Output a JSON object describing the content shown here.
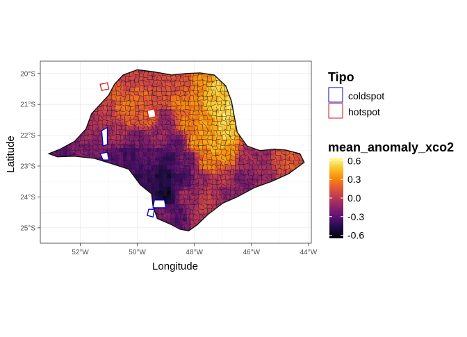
{
  "chart_data": {
    "type": "choropleth-map",
    "xlabel": "Longitude",
    "ylabel": "Latitude",
    "x_ticks": [
      {
        "value": -52,
        "label": "52°W"
      },
      {
        "value": -50,
        "label": "50°W"
      },
      {
        "value": -48,
        "label": "48°W"
      },
      {
        "value": -46,
        "label": "46°W"
      },
      {
        "value": -44,
        "label": "44°W"
      }
    ],
    "y_ticks": [
      {
        "value": -20,
        "label": "20°S"
      },
      {
        "value": -21,
        "label": "21°S"
      },
      {
        "value": -22,
        "label": "22°S"
      },
      {
        "value": -23,
        "label": "23°S"
      },
      {
        "value": -24,
        "label": "24°S"
      },
      {
        "value": -25,
        "label": "25°S"
      }
    ],
    "xlim": [
      -53.4,
      -43.9
    ],
    "ylim": [
      -25.5,
      -19.6
    ],
    "grid": true,
    "legend_position": "right",
    "tipo_legend": {
      "title": "Tipo",
      "entries": [
        {
          "label": "coldspot",
          "color": "#0000cc"
        },
        {
          "label": "hotspot",
          "color": "#dd1111"
        }
      ]
    },
    "color_legend": {
      "title": "mean_anomaly_xco2",
      "colormap": "inferno",
      "range": [
        -0.65,
        0.65
      ],
      "ticks": [
        {
          "value": 0.6,
          "label": "0.6"
        },
        {
          "value": 0.3,
          "label": "0.3"
        },
        {
          "value": 0.0,
          "label": "0.0"
        },
        {
          "value": -0.3,
          "label": "-0.3"
        },
        {
          "value": -0.6,
          "label": "-0.6"
        }
      ]
    },
    "region_outline": [
      [
        -53.1,
        -22.6
      ],
      [
        -52.7,
        -22.45
      ],
      [
        -52.2,
        -22.2
      ],
      [
        -51.8,
        -21.8
      ],
      [
        -51.6,
        -21.3
      ],
      [
        -51.3,
        -21.0
      ],
      [
        -51.0,
        -20.7
      ],
      [
        -50.8,
        -20.35
      ],
      [
        -50.5,
        -20.05
      ],
      [
        -50.0,
        -19.88
      ],
      [
        -49.4,
        -19.95
      ],
      [
        -48.8,
        -20.05
      ],
      [
        -48.3,
        -20.0
      ],
      [
        -47.8,
        -19.98
      ],
      [
        -47.3,
        -20.05
      ],
      [
        -46.9,
        -20.4
      ],
      [
        -46.7,
        -20.9
      ],
      [
        -46.6,
        -21.4
      ],
      [
        -46.5,
        -21.9
      ],
      [
        -46.15,
        -22.35
      ],
      [
        -45.7,
        -22.5
      ],
      [
        -45.2,
        -22.45
      ],
      [
        -44.8,
        -22.48
      ],
      [
        -44.3,
        -22.6
      ],
      [
        -44.15,
        -22.88
      ],
      [
        -44.7,
        -23.25
      ],
      [
        -45.3,
        -23.5
      ],
      [
        -45.9,
        -23.7
      ],
      [
        -46.5,
        -24.0
      ],
      [
        -47.0,
        -24.2
      ],
      [
        -47.5,
        -24.55
      ],
      [
        -47.9,
        -24.9
      ],
      [
        -48.2,
        -25.1
      ],
      [
        -48.5,
        -25.05
      ],
      [
        -48.8,
        -24.9
      ],
      [
        -49.3,
        -24.7
      ],
      [
        -49.45,
        -24.3
      ],
      [
        -49.5,
        -23.9
      ],
      [
        -49.9,
        -23.6
      ],
      [
        -50.3,
        -23.1
      ],
      [
        -50.8,
        -22.95
      ],
      [
        -51.5,
        -22.75
      ],
      [
        -52.2,
        -22.68
      ],
      [
        -52.8,
        -22.7
      ],
      [
        -53.1,
        -22.6
      ]
    ],
    "anomaly_cells": [
      {
        "lon": -52.7,
        "lat": -22.6,
        "v": -0.3
      },
      {
        "lon": -52.2,
        "lat": -22.4,
        "v": -0.2
      },
      {
        "lon": -51.8,
        "lat": -22.0,
        "v": -0.1
      },
      {
        "lon": -51.4,
        "lat": -21.6,
        "v": -0.05
      },
      {
        "lon": -51.0,
        "lat": -21.1,
        "v": 0.05
      },
      {
        "lon": -50.8,
        "lat": -20.5,
        "v": 0.15
      },
      {
        "lon": -50.3,
        "lat": -20.2,
        "v": 0.1
      },
      {
        "lon": -49.7,
        "lat": -20.1,
        "v": 0.05
      },
      {
        "lon": -49.1,
        "lat": -20.2,
        "v": 0.1
      },
      {
        "lon": -48.4,
        "lat": -20.3,
        "v": 0.15
      },
      {
        "lon": -47.7,
        "lat": -20.2,
        "v": 0.35
      },
      {
        "lon": -47.1,
        "lat": -20.5,
        "v": 0.5
      },
      {
        "lon": -46.9,
        "lat": -21.2,
        "v": 0.55
      },
      {
        "lon": -47.3,
        "lat": -21.0,
        "v": 0.45
      },
      {
        "lon": -47.9,
        "lat": -21.2,
        "v": 0.3
      },
      {
        "lon": -48.5,
        "lat": -21.0,
        "v": 0.25
      },
      {
        "lon": -49.2,
        "lat": -20.8,
        "v": 0.1
      },
      {
        "lon": -49.9,
        "lat": -20.7,
        "v": 0.2
      },
      {
        "lon": -50.5,
        "lat": -21.0,
        "v": 0.25
      },
      {
        "lon": -50.2,
        "lat": -21.5,
        "v": 0.15
      },
      {
        "lon": -49.6,
        "lat": -21.4,
        "v": 0.2
      },
      {
        "lon": -49.0,
        "lat": -21.5,
        "v": -0.15
      },
      {
        "lon": -48.3,
        "lat": -21.6,
        "v": 0.3
      },
      {
        "lon": -47.6,
        "lat": -21.7,
        "v": 0.35
      },
      {
        "lon": -46.9,
        "lat": -21.9,
        "v": 0.5
      },
      {
        "lon": -47.2,
        "lat": -22.3,
        "v": 0.4
      },
      {
        "lon": -47.9,
        "lat": -22.2,
        "v": 0.35
      },
      {
        "lon": -48.6,
        "lat": -22.2,
        "v": -0.25
      },
      {
        "lon": -49.3,
        "lat": -22.0,
        "v": -0.1
      },
      {
        "lon": -50.0,
        "lat": -22.1,
        "v": -0.2
      },
      {
        "lon": -50.7,
        "lat": -22.0,
        "v": -0.05
      },
      {
        "lon": -51.2,
        "lat": -22.3,
        "v": -0.15
      },
      {
        "lon": -51.6,
        "lat": -22.6,
        "v": -0.2
      },
      {
        "lon": -50.9,
        "lat": -22.7,
        "v": -0.3
      },
      {
        "lon": -50.3,
        "lat": -22.6,
        "v": -0.35
      },
      {
        "lon": -49.6,
        "lat": -22.6,
        "v": -0.3
      },
      {
        "lon": -48.9,
        "lat": -22.8,
        "v": -0.4
      },
      {
        "lon": -48.2,
        "lat": -22.8,
        "v": -0.2
      },
      {
        "lon": -47.5,
        "lat": -22.9,
        "v": 0.3
      },
      {
        "lon": -46.8,
        "lat": -22.6,
        "v": 0.35
      },
      {
        "lon": -46.2,
        "lat": -22.7,
        "v": -0.05
      },
      {
        "lon": -45.6,
        "lat": -22.8,
        "v": -0.1
      },
      {
        "lon": -45.0,
        "lat": -22.8,
        "v": 0.1
      },
      {
        "lon": -44.5,
        "lat": -22.8,
        "v": 0.15
      },
      {
        "lon": -45.6,
        "lat": -23.3,
        "v": -0.1
      },
      {
        "lon": -46.3,
        "lat": -23.4,
        "v": -0.2
      },
      {
        "lon": -47.0,
        "lat": -23.5,
        "v": 0.0
      },
      {
        "lon": -47.7,
        "lat": -23.4,
        "v": -0.1
      },
      {
        "lon": -48.4,
        "lat": -23.4,
        "v": -0.35
      },
      {
        "lon": -49.1,
        "lat": -23.4,
        "v": -0.5
      },
      {
        "lon": -49.7,
        "lat": -23.3,
        "v": -0.4
      },
      {
        "lon": -49.0,
        "lat": -24.0,
        "v": -0.55
      },
      {
        "lon": -48.3,
        "lat": -24.0,
        "v": -0.1
      },
      {
        "lon": -47.5,
        "lat": -24.1,
        "v": 0.05
      },
      {
        "lon": -46.9,
        "lat": -23.9,
        "v": -0.15
      },
      {
        "lon": -48.5,
        "lat": -24.6,
        "v": -0.3
      },
      {
        "lon": -49.1,
        "lat": -24.5,
        "v": -0.2
      },
      {
        "lon": -47.9,
        "lat": -24.6,
        "v": 0.0
      }
    ],
    "coldspots": [
      [
        [
          -51.25,
          -21.85
        ],
        [
          -51.05,
          -21.75
        ],
        [
          -51.05,
          -22.3
        ],
        [
          -51.2,
          -22.35
        ]
      ],
      [
        [
          -51.3,
          -22.6
        ],
        [
          -51.05,
          -22.55
        ],
        [
          -51.0,
          -22.8
        ],
        [
          -51.2,
          -22.8
        ]
      ],
      [
        [
          -49.4,
          -24.1
        ],
        [
          -49.05,
          -24.1
        ],
        [
          -49.0,
          -24.35
        ],
        [
          -49.45,
          -24.35
        ]
      ],
      [
        [
          -49.6,
          -24.4
        ],
        [
          -49.4,
          -24.4
        ],
        [
          -49.45,
          -24.65
        ],
        [
          -49.65,
          -24.6
        ]
      ]
    ],
    "hotspots": [
      [
        [
          -51.3,
          -20.35
        ],
        [
          -51.05,
          -20.3
        ],
        [
          -51.0,
          -20.5
        ],
        [
          -51.25,
          -20.55
        ]
      ],
      [
        [
          -49.65,
          -21.2
        ],
        [
          -49.4,
          -21.15
        ],
        [
          -49.35,
          -21.4
        ],
        [
          -49.6,
          -21.45
        ]
      ]
    ]
  }
}
